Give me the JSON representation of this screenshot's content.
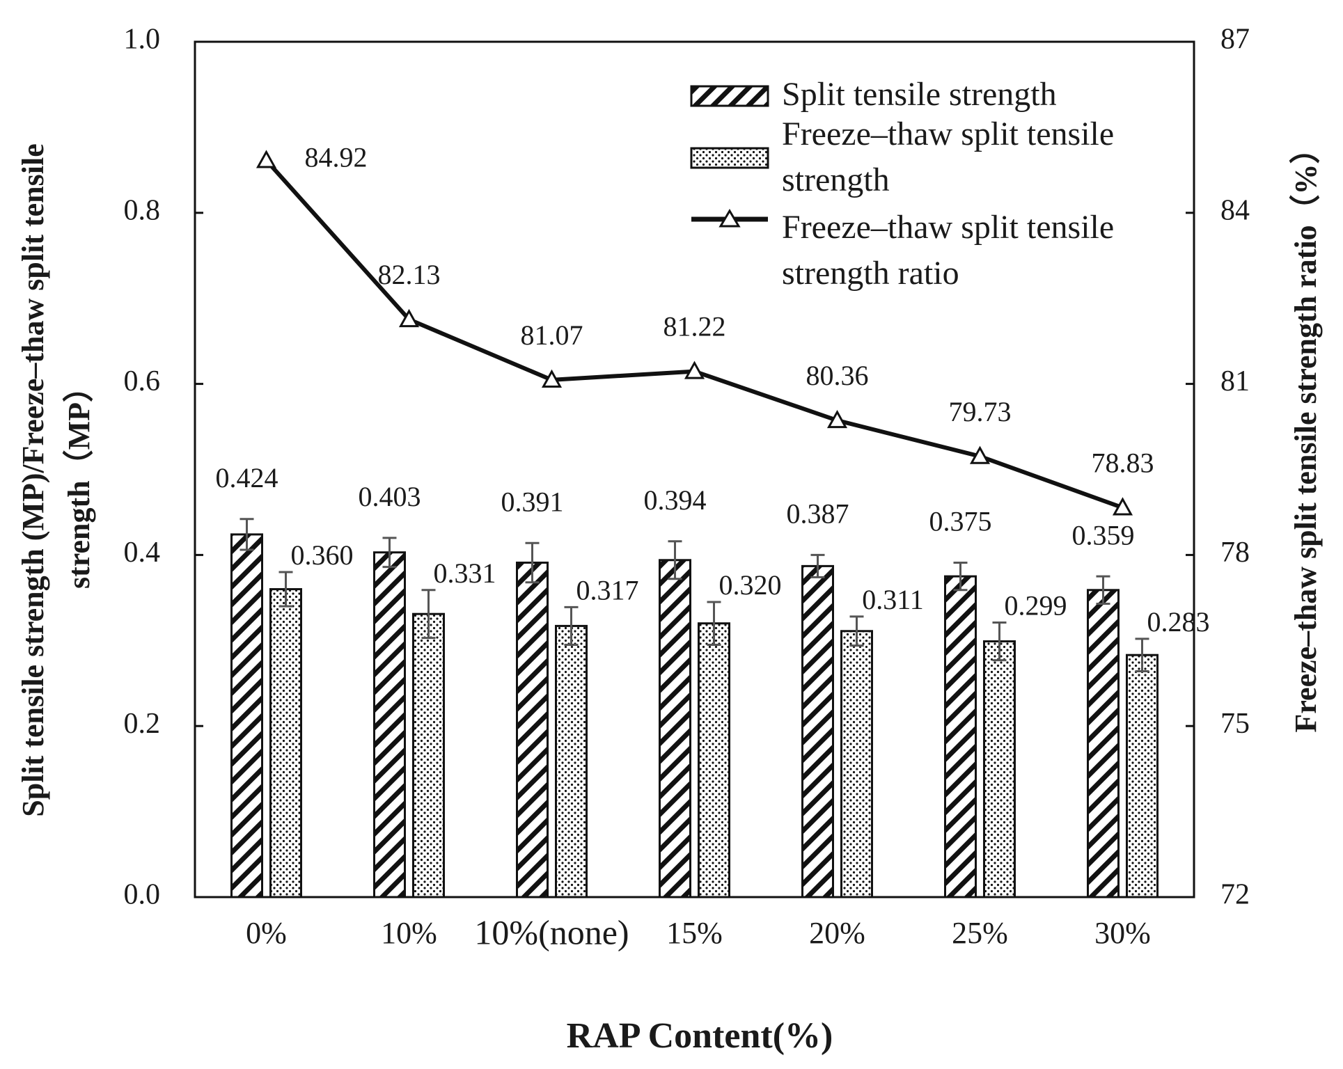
{
  "chart_data": {
    "type": "bar+line",
    "title": "",
    "xlabel": "RAP Content(%)",
    "ylabel_left_line1": "Split tensile strength (MP)/Freeze–thaw split tensile",
    "ylabel_left_line2": "strength（MP）",
    "ylabel_right": "Freeze–thaw split tensile strength ratio（%）",
    "categories": [
      "0%",
      "10%",
      "10%(none)",
      "15%",
      "20%",
      "25%",
      "30%"
    ],
    "ylim_left": [
      0.0,
      1.0
    ],
    "yticks_left": [
      "0.0",
      "0.2",
      "0.4",
      "0.6",
      "0.8",
      "1.0"
    ],
    "ylim_right": [
      72,
      87
    ],
    "yticks_right": [
      "72",
      "75",
      "78",
      "81",
      "84",
      "87"
    ],
    "grid": false,
    "legend_position": "top-right",
    "series": [
      {
        "name": "Split tensile strength",
        "kind": "bar",
        "pattern": "diagonal-hatch",
        "axis": "left",
        "values": [
          0.424,
          0.403,
          0.391,
          0.394,
          0.387,
          0.375,
          0.359
        ],
        "labels": [
          "0.424",
          "0.403",
          "0.391",
          "0.394",
          "0.387",
          "0.375",
          "0.359"
        ],
        "errors": [
          0.018,
          0.017,
          0.023,
          0.022,
          0.013,
          0.016,
          0.016
        ]
      },
      {
        "name": "Freeze–thaw split tensile strength",
        "legend_lines": [
          "Freeze–thaw split tensile",
          "strength"
        ],
        "kind": "bar",
        "pattern": "dots",
        "axis": "left",
        "values": [
          0.36,
          0.331,
          0.317,
          0.32,
          0.311,
          0.299,
          0.283
        ],
        "labels": [
          "0.360",
          "0.331",
          "0.317",
          "0.320",
          "0.311",
          "0.299",
          "0.283"
        ],
        "errors": [
          0.02,
          0.028,
          0.022,
          0.025,
          0.017,
          0.022,
          0.019
        ]
      },
      {
        "name": "Freeze–thaw split tensile strength ratio",
        "legend_lines": [
          "Freeze–thaw split tensile",
          "strength ratio"
        ],
        "kind": "line",
        "marker": "triangle",
        "axis": "right",
        "values": [
          84.92,
          82.13,
          81.07,
          81.22,
          80.36,
          79.73,
          78.83
        ],
        "labels": [
          "84.92",
          "82.13",
          "81.07",
          "81.22",
          "80.36",
          "79.73",
          "78.83"
        ]
      }
    ]
  }
}
